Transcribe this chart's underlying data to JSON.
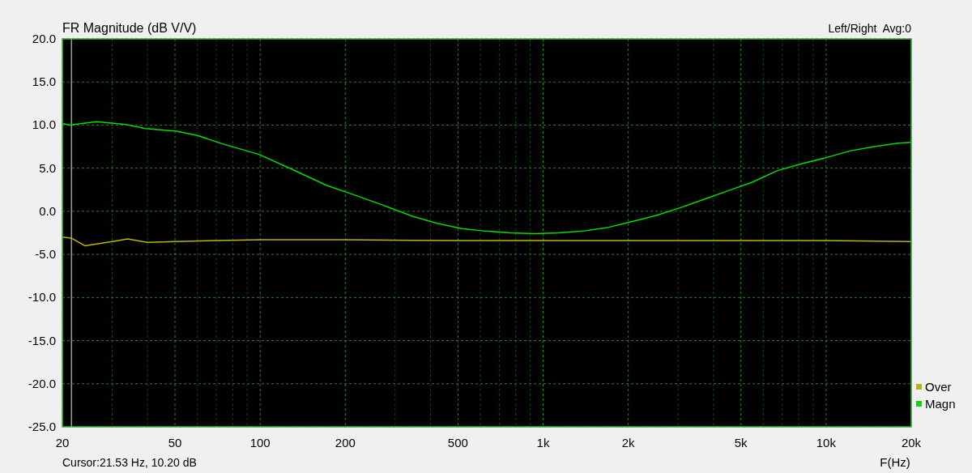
{
  "chart_data": {
    "type": "line",
    "title": "FR Magnitude (dB V/V)",
    "xlabel": "F(Hz)",
    "log": "x",
    "annotations": [
      "Left/Right  Avg:0",
      "Cursor:21.53 Hz, 10.20 dB"
    ],
    "xlim": [
      20,
      20000
    ],
    "ylim": [
      -25,
      20
    ],
    "xticks": [
      {
        "value": 20,
        "label": "20"
      },
      {
        "value": 30,
        "label": null
      },
      {
        "value": 40,
        "label": null
      },
      {
        "value": 50,
        "label": "50"
      },
      {
        "value": 60,
        "label": null
      },
      {
        "value": 70,
        "label": null
      },
      {
        "value": 80,
        "label": null
      },
      {
        "value": 90,
        "label": null
      },
      {
        "value": 100,
        "label": "100"
      },
      {
        "value": 200,
        "label": "200"
      },
      {
        "value": 300,
        "label": null
      },
      {
        "value": 400,
        "label": null
      },
      {
        "value": 500,
        "label": "500"
      },
      {
        "value": 600,
        "label": null
      },
      {
        "value": 700,
        "label": null
      },
      {
        "value": 800,
        "label": null
      },
      {
        "value": 900,
        "label": null
      },
      {
        "value": 1000,
        "label": "1k"
      },
      {
        "value": 2000,
        "label": "2k"
      },
      {
        "value": 3000,
        "label": null
      },
      {
        "value": 4000,
        "label": null
      },
      {
        "value": 5000,
        "label": "5k"
      },
      {
        "value": 6000,
        "label": null
      },
      {
        "value": 7000,
        "label": null
      },
      {
        "value": 8000,
        "label": null
      },
      {
        "value": 9000,
        "label": null
      },
      {
        "value": 10000,
        "label": "10k"
      },
      {
        "value": 20000,
        "label": "20k"
      }
    ],
    "yticks": [
      {
        "value": 20,
        "label": "20.0"
      },
      {
        "value": 15,
        "label": "15.0"
      },
      {
        "value": 10,
        "label": "10.0"
      },
      {
        "value": 5,
        "label": "5.0"
      },
      {
        "value": 0,
        "label": "0.0"
      },
      {
        "value": -5,
        "label": "-5.0"
      },
      {
        "value": -10,
        "label": "-10.0"
      },
      {
        "value": -15,
        "label": "-15.0"
      },
      {
        "value": -20,
        "label": "-20.0"
      },
      {
        "value": -25,
        "label": "-25.0"
      }
    ],
    "grid": true,
    "legend": "bottom right",
    "marker": "none",
    "line_style": "solid",
    "ref_lines": [
      {
        "axis": "x",
        "value": 21.53,
        "color": "#e8e8c0"
      }
    ],
    "series": [
      {
        "name": "Over",
        "color": "#b8b800",
        "x": [
          20,
          21.5,
          24,
          30,
          34,
          40,
          50,
          70,
          100,
          200,
          500,
          1000,
          2000,
          5000,
          10000,
          20000
        ],
        "values": [
          -3.0,
          -3.1,
          -4.0,
          -3.5,
          -3.2,
          -3.6,
          -3.5,
          -3.4,
          -3.3,
          -3.3,
          -3.4,
          -3.4,
          -3.4,
          -3.4,
          -3.4,
          -3.5
        ]
      },
      {
        "name": "Magn",
        "color": "#00dd00",
        "x": [
          20,
          21.1,
          26.4,
          33.1,
          39.3,
          50.6,
          59.9,
          74,
          99,
          129,
          172,
          215,
          267,
          347,
          422,
          515,
          627,
          764,
          930,
          1134,
          1380,
          1683,
          2050,
          2497,
          3042,
          3707,
          4516,
          5500,
          6700,
          8165,
          9946,
          12120,
          14760,
          17990,
          20000
        ],
        "values": [
          10.2,
          10.0,
          10.4,
          10.1,
          9.6,
          9.3,
          8.8,
          7.8,
          6.6,
          4.9,
          3.0,
          1.9,
          0.8,
          -0.6,
          -1.4,
          -2.0,
          -2.3,
          -2.5,
          -2.6,
          -2.5,
          -2.3,
          -1.9,
          -1.2,
          -0.5,
          0.4,
          1.4,
          2.4,
          3.4,
          4.7,
          5.5,
          6.2,
          7.0,
          7.5,
          7.9,
          8.0
        ]
      }
    ]
  }
}
